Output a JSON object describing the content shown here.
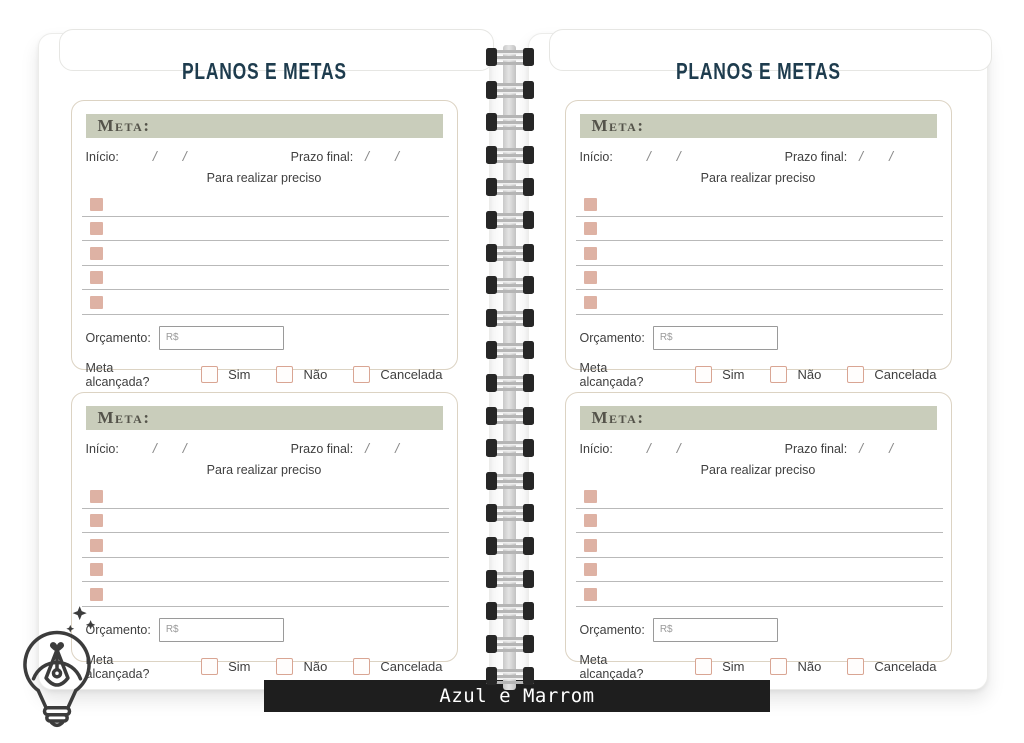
{
  "page_title": "PLANOS E METAS",
  "card": {
    "meta_label": "Meta:",
    "inicio_label": "Início:",
    "slash": "/",
    "prazo_label": "Prazo final:",
    "subtitle": "Para realizar preciso",
    "orcamento_label": "Orçamento:",
    "orcamento_placeholder": "R$",
    "alcancada_label": "Meta alcançada?",
    "options": [
      "Sim",
      "Não",
      "Cancelada"
    ]
  },
  "footer": {
    "banner_text": "Azul e Marrom"
  },
  "colors": {
    "title_teal": "#1e3c4e",
    "meta_bar_sage": "#c9cdbb",
    "item_square_salmon": "#deb2a4",
    "checkbox_border": "#d9a593",
    "banner_bg": "#1e1e1e",
    "banner_text": "#ffffff"
  }
}
